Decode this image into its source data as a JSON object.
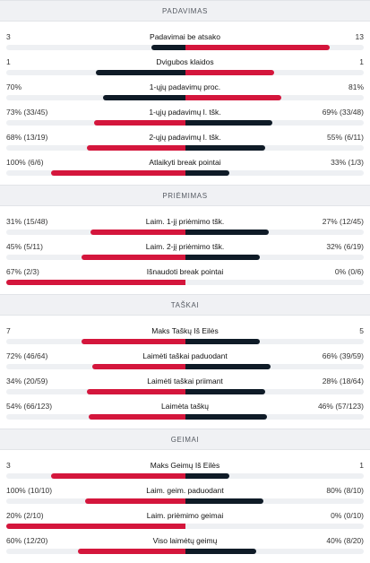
{
  "colors": {
    "win": "#d4163c",
    "lose": "#0f1b27",
    "track": "#eef0f3"
  },
  "sections": [
    {
      "title": "PADAVIMAS",
      "rows": [
        {
          "label": "Padavimai be atsako",
          "left": "3",
          "right": "13",
          "lshare": 0.19,
          "rshare": 0.81,
          "lwin": false
        },
        {
          "label": "Dvigubos klaidos",
          "left": "1",
          "right": "1",
          "lshare": 0.5,
          "rshare": 0.5,
          "lwin": false
        },
        {
          "label": "1-ųjų padavimų proc.",
          "left": "70%",
          "right": "81%",
          "lshare": 0.46,
          "rshare": 0.54,
          "lwin": false
        },
        {
          "label": "1-ųjų padavimų l. tšk.",
          "left": "73% (33/45)",
          "right": "69% (33/48)",
          "lshare": 0.51,
          "rshare": 0.49,
          "lwin": true
        },
        {
          "label": "2-ųjų padavimų l. tšk.",
          "left": "68% (13/19)",
          "right": "55% (6/11)",
          "lshare": 0.55,
          "rshare": 0.45,
          "lwin": true
        },
        {
          "label": "Atlaikyti break pointai",
          "left": "100% (6/6)",
          "right": "33% (1/3)",
          "lshare": 0.75,
          "rshare": 0.25,
          "lwin": true
        }
      ]
    },
    {
      "title": "PRIĖMIMAS",
      "rows": [
        {
          "label": "Laim. 1-jį priėmimo tšk.",
          "left": "31% (15/48)",
          "right": "27% (12/45)",
          "lshare": 0.53,
          "rshare": 0.47,
          "lwin": true
        },
        {
          "label": "Laim. 2-jį priėmimo tšk.",
          "left": "45% (5/11)",
          "right": "32% (6/19)",
          "lshare": 0.58,
          "rshare": 0.42,
          "lwin": true
        },
        {
          "label": "Išnaudoti break pointai",
          "left": "67% (2/3)",
          "right": "0% (0/6)",
          "lshare": 1.0,
          "rshare": 0.0,
          "lwin": true
        }
      ]
    },
    {
      "title": "TAŠKAI",
      "rows": [
        {
          "label": "Maks Taškų Iš Eilės",
          "left": "7",
          "right": "5",
          "lshare": 0.58,
          "rshare": 0.42,
          "lwin": true
        },
        {
          "label": "Laimėti taškai paduodant",
          "left": "72% (46/64)",
          "right": "66% (39/59)",
          "lshare": 0.52,
          "rshare": 0.48,
          "lwin": true
        },
        {
          "label": "Laimėti taškai priimant",
          "left": "34% (20/59)",
          "right": "28% (18/64)",
          "lshare": 0.55,
          "rshare": 0.45,
          "lwin": true
        },
        {
          "label": "Laimėta taškų",
          "left": "54% (66/123)",
          "right": "46% (57/123)",
          "lshare": 0.54,
          "rshare": 0.46,
          "lwin": true
        }
      ]
    },
    {
      "title": "GEIMAI",
      "rows": [
        {
          "label": "Maks Geimų Iš Eilės",
          "left": "3",
          "right": "1",
          "lshare": 0.75,
          "rshare": 0.25,
          "lwin": true
        },
        {
          "label": "Laim. geim. paduodant",
          "left": "100% (10/10)",
          "right": "80% (8/10)",
          "lshare": 0.56,
          "rshare": 0.44,
          "lwin": true
        },
        {
          "label": "Laim. priėmimo geimai",
          "left": "20% (2/10)",
          "right": "0% (0/10)",
          "lshare": 1.0,
          "rshare": 0.0,
          "lwin": true
        },
        {
          "label": "Viso laimėtų geimų",
          "left": "60% (12/20)",
          "right": "40% (8/20)",
          "lshare": 0.6,
          "rshare": 0.4,
          "lwin": true
        }
      ]
    }
  ]
}
